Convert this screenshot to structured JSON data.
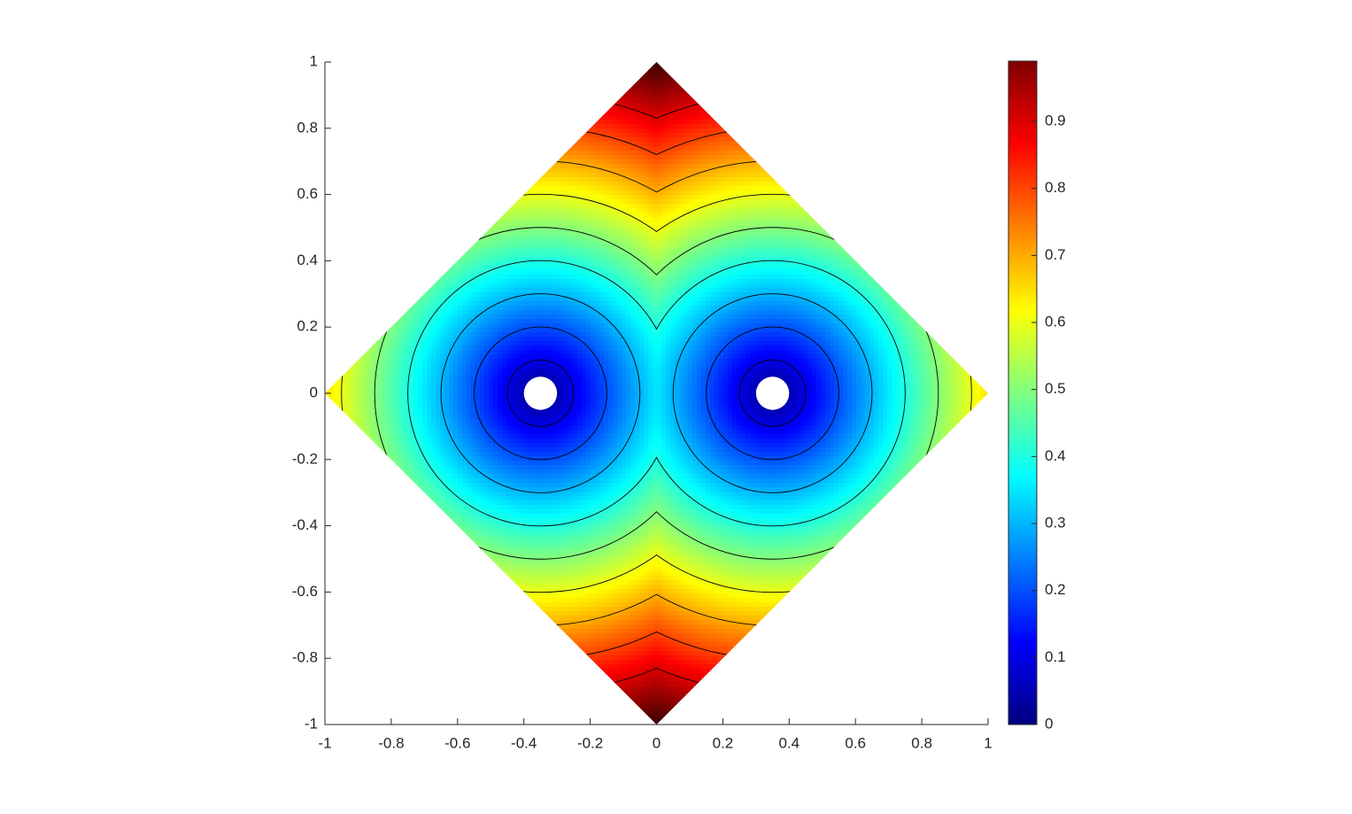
{
  "chart_data": {
    "type": "contour",
    "xlim": [
      -1,
      1
    ],
    "ylim": [
      -1,
      1
    ],
    "xticks": [
      -1,
      -0.8,
      -0.6,
      -0.4,
      -0.2,
      0,
      0.2,
      0.4,
      0.6,
      0.8,
      1
    ],
    "yticks": [
      -1,
      -0.8,
      -0.6,
      -0.4,
      -0.2,
      0,
      0.2,
      0.4,
      0.6,
      0.8,
      1
    ],
    "domain": [
      [
        -1,
        0
      ],
      [
        0,
        1
      ],
      [
        1,
        0
      ],
      [
        0,
        -1
      ]
    ],
    "holes": [
      {
        "x": -0.35,
        "y": 0,
        "r": 0.05
      },
      {
        "x": 0.35,
        "y": 0,
        "r": 0.05
      }
    ],
    "levels": [
      0.1,
      0.2,
      0.3,
      0.4,
      0.5,
      0.6,
      0.7,
      0.8,
      0.9
    ],
    "colormap": "jet",
    "clim": [
      0,
      0.99
    ],
    "cticks": [
      0,
      0.1,
      0.2,
      0.3,
      0.4,
      0.5,
      0.6,
      0.7,
      0.8,
      0.9
    ]
  }
}
